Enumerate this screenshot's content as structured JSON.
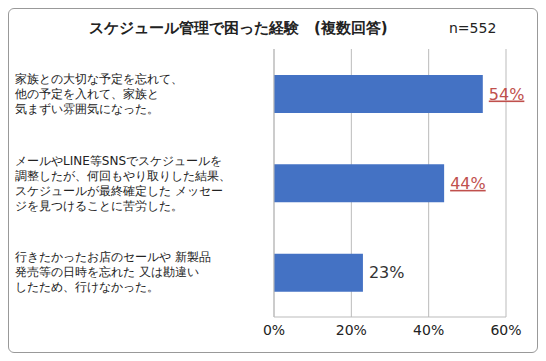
{
  "chart_data": {
    "type": "bar",
    "orientation": "horizontal",
    "title": "スケジュール管理で困った経験　(複数回答)",
    "subtitle": "n=552",
    "categories": [
      "家族との大切な予定を忘れて、\n他の予定を入れて、家族と\n気まずい雰囲気になった。",
      "メールやLINE等SNSでスケジュールを\n調整したが、何回もやり取りした結果、\nスケジュールが最終確定した メッセー\nジを見つけることに苦労した。",
      "行きたかったお店のセールや 新製品\n発売等の日時を忘れた 又は勘違い\nしたため、行けなかった。"
    ],
    "values": [
      54,
      44,
      23
    ],
    "value_labels": [
      "54%",
      "44%",
      "23%"
    ],
    "data_labels": true,
    "color": "#4472c4",
    "xlim": [
      0,
      60
    ],
    "xticks": [
      {
        "value": 0,
        "label": "0%"
      },
      {
        "value": 20,
        "label": "20%"
      },
      {
        "value": 40,
        "label": "40%"
      },
      {
        "value": 60,
        "label": "60%"
      }
    ],
    "grid": true
  }
}
